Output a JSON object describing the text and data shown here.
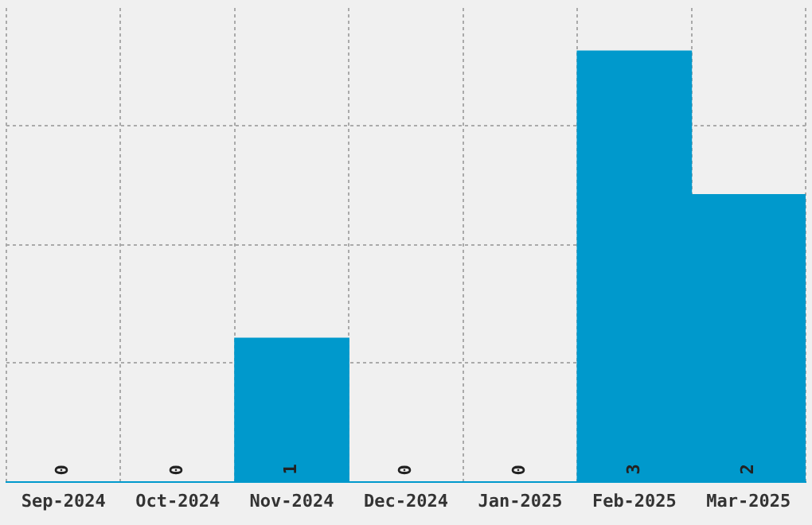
{
  "chart_data": {
    "type": "bar",
    "categories": [
      "Sep-2024",
      "Oct-2024",
      "Nov-2024",
      "Dec-2024",
      "Jan-2025",
      "Feb-2025",
      "Mar-2025"
    ],
    "values": [
      0,
      0,
      1,
      0,
      0,
      3,
      2
    ],
    "color": "#0099cc",
    "data_labels": true,
    "ylim": [
      0,
      3.3
    ],
    "yticks": [
      {
        "value": 0,
        "label": null
      },
      {
        "value": 0.83,
        "label": null
      },
      {
        "value": 1.65,
        "label": null
      },
      {
        "value": 2.48,
        "label": null
      }
    ],
    "grid": true,
    "tick_labels": "x"
  }
}
